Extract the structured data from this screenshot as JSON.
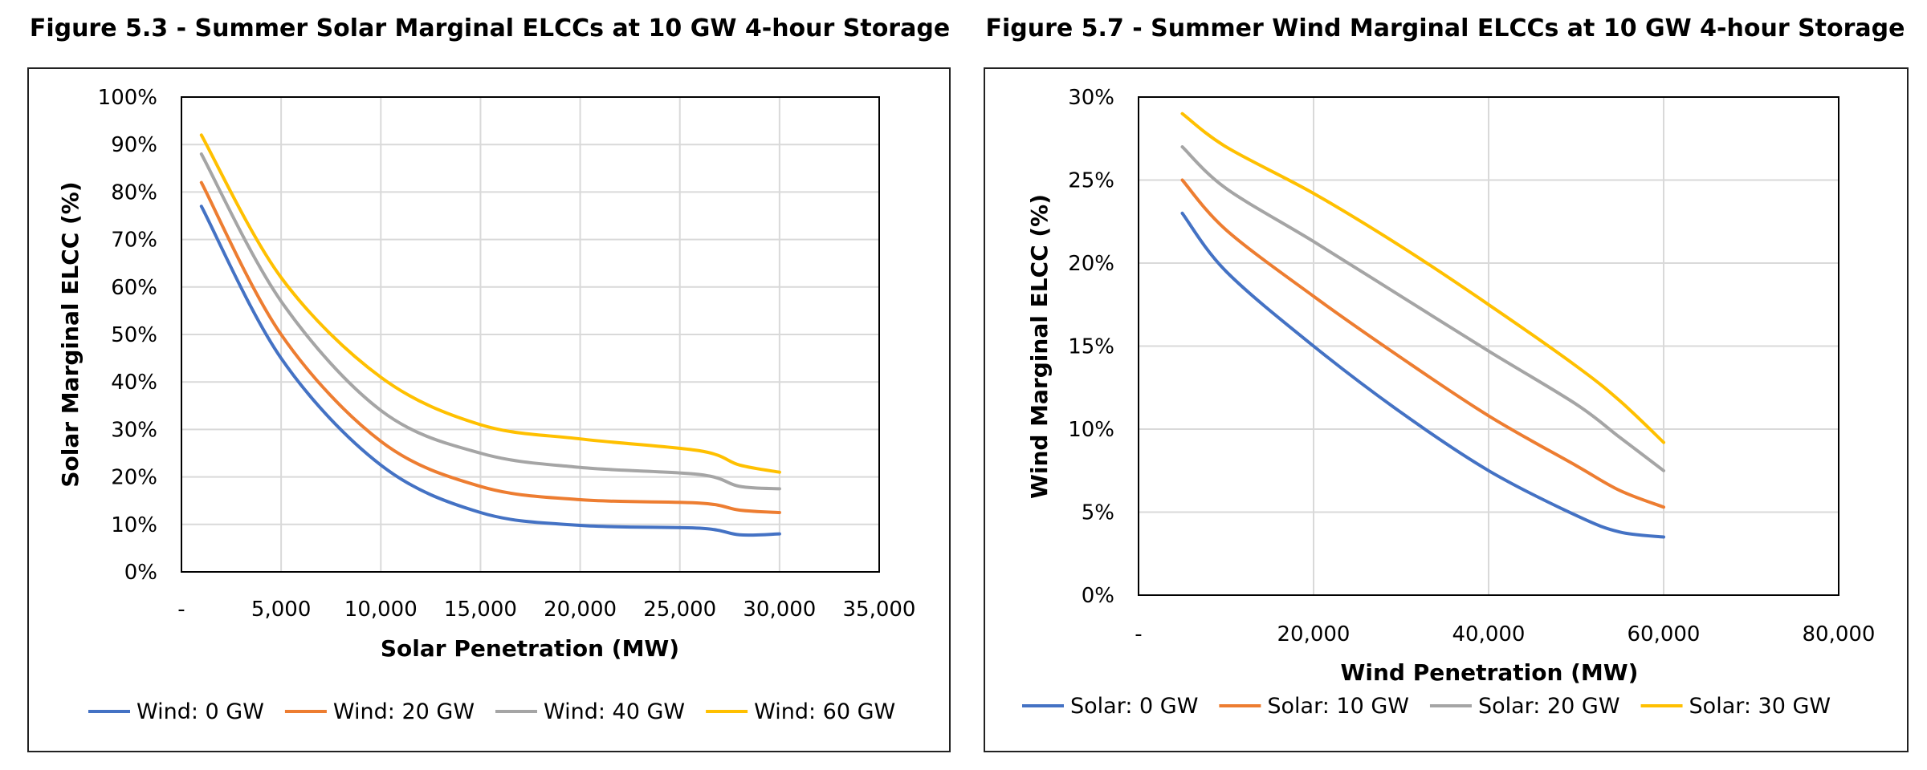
{
  "chart_data": [
    {
      "id": "left",
      "type": "line",
      "title": "Figure 5.3 - Summer Solar Marginal ELCCs at 10 GW 4-hour Storage",
      "xlabel": "Solar Penetration (MW)",
      "ylabel": "Solar Marginal ELCC (%)",
      "xlim": [
        0,
        35000
      ],
      "ylim": [
        0,
        100
      ],
      "x_ticks": [
        0,
        5000,
        10000,
        15000,
        20000,
        25000,
        30000,
        35000
      ],
      "x_tick_labels": [
        "-",
        "5,000",
        "10,000",
        "15,000",
        "20,000",
        "25,000",
        "30,000",
        "35,000"
      ],
      "y_ticks": [
        0,
        10,
        20,
        30,
        40,
        50,
        60,
        70,
        80,
        90,
        100
      ],
      "y_tick_labels": [
        "0%",
        "10%",
        "20%",
        "30%",
        "40%",
        "50%",
        "60%",
        "70%",
        "80%",
        "90%",
        "100%"
      ],
      "grid": true,
      "legend_position": "bottom",
      "x": [
        1000,
        5000,
        10000,
        15000,
        20000,
        26000,
        28000,
        30000
      ],
      "series": [
        {
          "name": "Wind: 0 GW",
          "color": "#4472C4",
          "values": [
            77,
            45,
            22.5,
            12.5,
            9.8,
            9.2,
            7.8,
            8
          ]
        },
        {
          "name": "Wind: 20 GW",
          "color": "#ED7D31",
          "values": [
            82,
            50,
            27.5,
            18,
            15.2,
            14.5,
            13,
            12.5
          ]
        },
        {
          "name": "Wind: 40 GW",
          "color": "#A5A5A5",
          "values": [
            88,
            57,
            34,
            25,
            22,
            20.5,
            18,
            17.5
          ]
        },
        {
          "name": "Wind: 60 GW",
          "color": "#FFC000",
          "values": [
            92,
            62,
            41,
            31,
            28,
            25.5,
            22.5,
            21
          ]
        }
      ]
    },
    {
      "id": "right",
      "type": "line",
      "title": "Figure 5.7 - Summer Wind Marginal ELCCs at 10 GW 4-hour Storage",
      "xlabel": "Wind Penetration (MW)",
      "ylabel": "Wind Marginal ELCC (%)",
      "xlim": [
        0,
        80000
      ],
      "ylim": [
        0,
        30
      ],
      "x_ticks": [
        0,
        20000,
        40000,
        60000,
        80000
      ],
      "x_tick_labels": [
        "-",
        "20,000",
        "40,000",
        "60,000",
        "80,000"
      ],
      "y_ticks": [
        0,
        5,
        10,
        15,
        20,
        25,
        30
      ],
      "y_tick_labels": [
        "0%",
        "5%",
        "10%",
        "15%",
        "20%",
        "25%",
        "30%"
      ],
      "grid": true,
      "legend_position": "bottom",
      "x": [
        5000,
        10000,
        20000,
        30000,
        40000,
        50000,
        55000,
        60000
      ],
      "series": [
        {
          "name": "Solar: 0 GW",
          "color": "#4472C4",
          "values": [
            23,
            19.5,
            15,
            11,
            7.5,
            4.8,
            3.8,
            3.5
          ]
        },
        {
          "name": "Solar: 10 GW",
          "color": "#ED7D31",
          "values": [
            25,
            22,
            18,
            14.3,
            10.8,
            7.8,
            6.3,
            5.3
          ]
        },
        {
          "name": "Solar: 20 GW",
          "color": "#A5A5A5",
          "values": [
            27,
            24.5,
            21.3,
            18,
            14.7,
            11.5,
            9.5,
            7.5
          ]
        },
        {
          "name": "Solar: 30 GW",
          "color": "#FFC000",
          "values": [
            29,
            27,
            24.2,
            21,
            17.5,
            13.8,
            11.7,
            9.2
          ]
        }
      ]
    }
  ]
}
